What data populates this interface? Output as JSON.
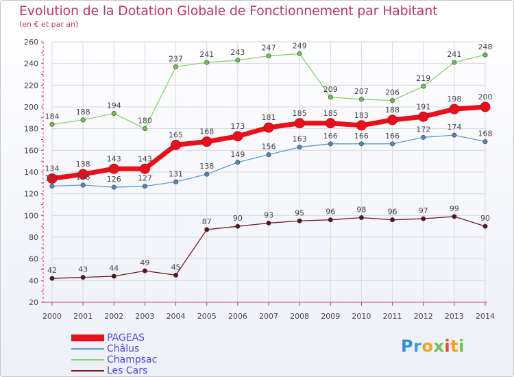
{
  "title": "Evolution de la Dotation Globale de Fonctionnement par Habitant",
  "subtitle": "(en € et par an)",
  "brand": "Proxiti",
  "colors": {
    "title": "#c0356b",
    "axis": "#c03a6a",
    "grid": "#d8d8e0",
    "label": "#444444",
    "legend_text": "#4a4ad8"
  },
  "chart_data": {
    "type": "line",
    "x": [
      "2000",
      "2001",
      "2002",
      "2003",
      "2004",
      "2005",
      "2006",
      "2007",
      "2008",
      "2009",
      "2010",
      "2011",
      "2012",
      "2013",
      "2014"
    ],
    "ylim": [
      20,
      260
    ],
    "yticks": [
      20,
      40,
      60,
      80,
      100,
      120,
      140,
      160,
      180,
      200,
      220,
      240,
      260
    ],
    "grid": true,
    "legend_position": "bottom-left",
    "series": [
      {
        "name": "PAGEAS",
        "color": "#e8101a",
        "marker": "#e8101a",
        "width": 7,
        "radius": 7,
        "values": [
          134,
          138,
          143,
          143,
          165,
          168,
          173,
          181,
          185,
          185,
          183,
          188,
          191,
          198,
          200
        ]
      },
      {
        "name": "Châlus",
        "color": "#5a9ad0",
        "marker": "#4f86c2",
        "width": 1.3,
        "radius": 3.2,
        "values": [
          127,
          128,
          126,
          127,
          131,
          138,
          149,
          156,
          163,
          166,
          166,
          166,
          172,
          174,
          168
        ]
      },
      {
        "name": "Champsac",
        "color": "#88d26a",
        "marker": "#6cc24a",
        "width": 1.3,
        "radius": 3.2,
        "values": [
          184,
          188,
          194,
          180,
          237,
          241,
          243,
          247,
          249,
          209,
          207,
          206,
          219,
          241,
          248
        ]
      },
      {
        "name": "Les Cars",
        "color": "#6a1e22",
        "marker": "#5a1418",
        "width": 1.3,
        "radius": 3.2,
        "values": [
          42,
          43,
          44,
          49,
          45,
          87,
          90,
          93,
          95,
          96,
          98,
          96,
          97,
          99,
          90
        ]
      }
    ]
  }
}
